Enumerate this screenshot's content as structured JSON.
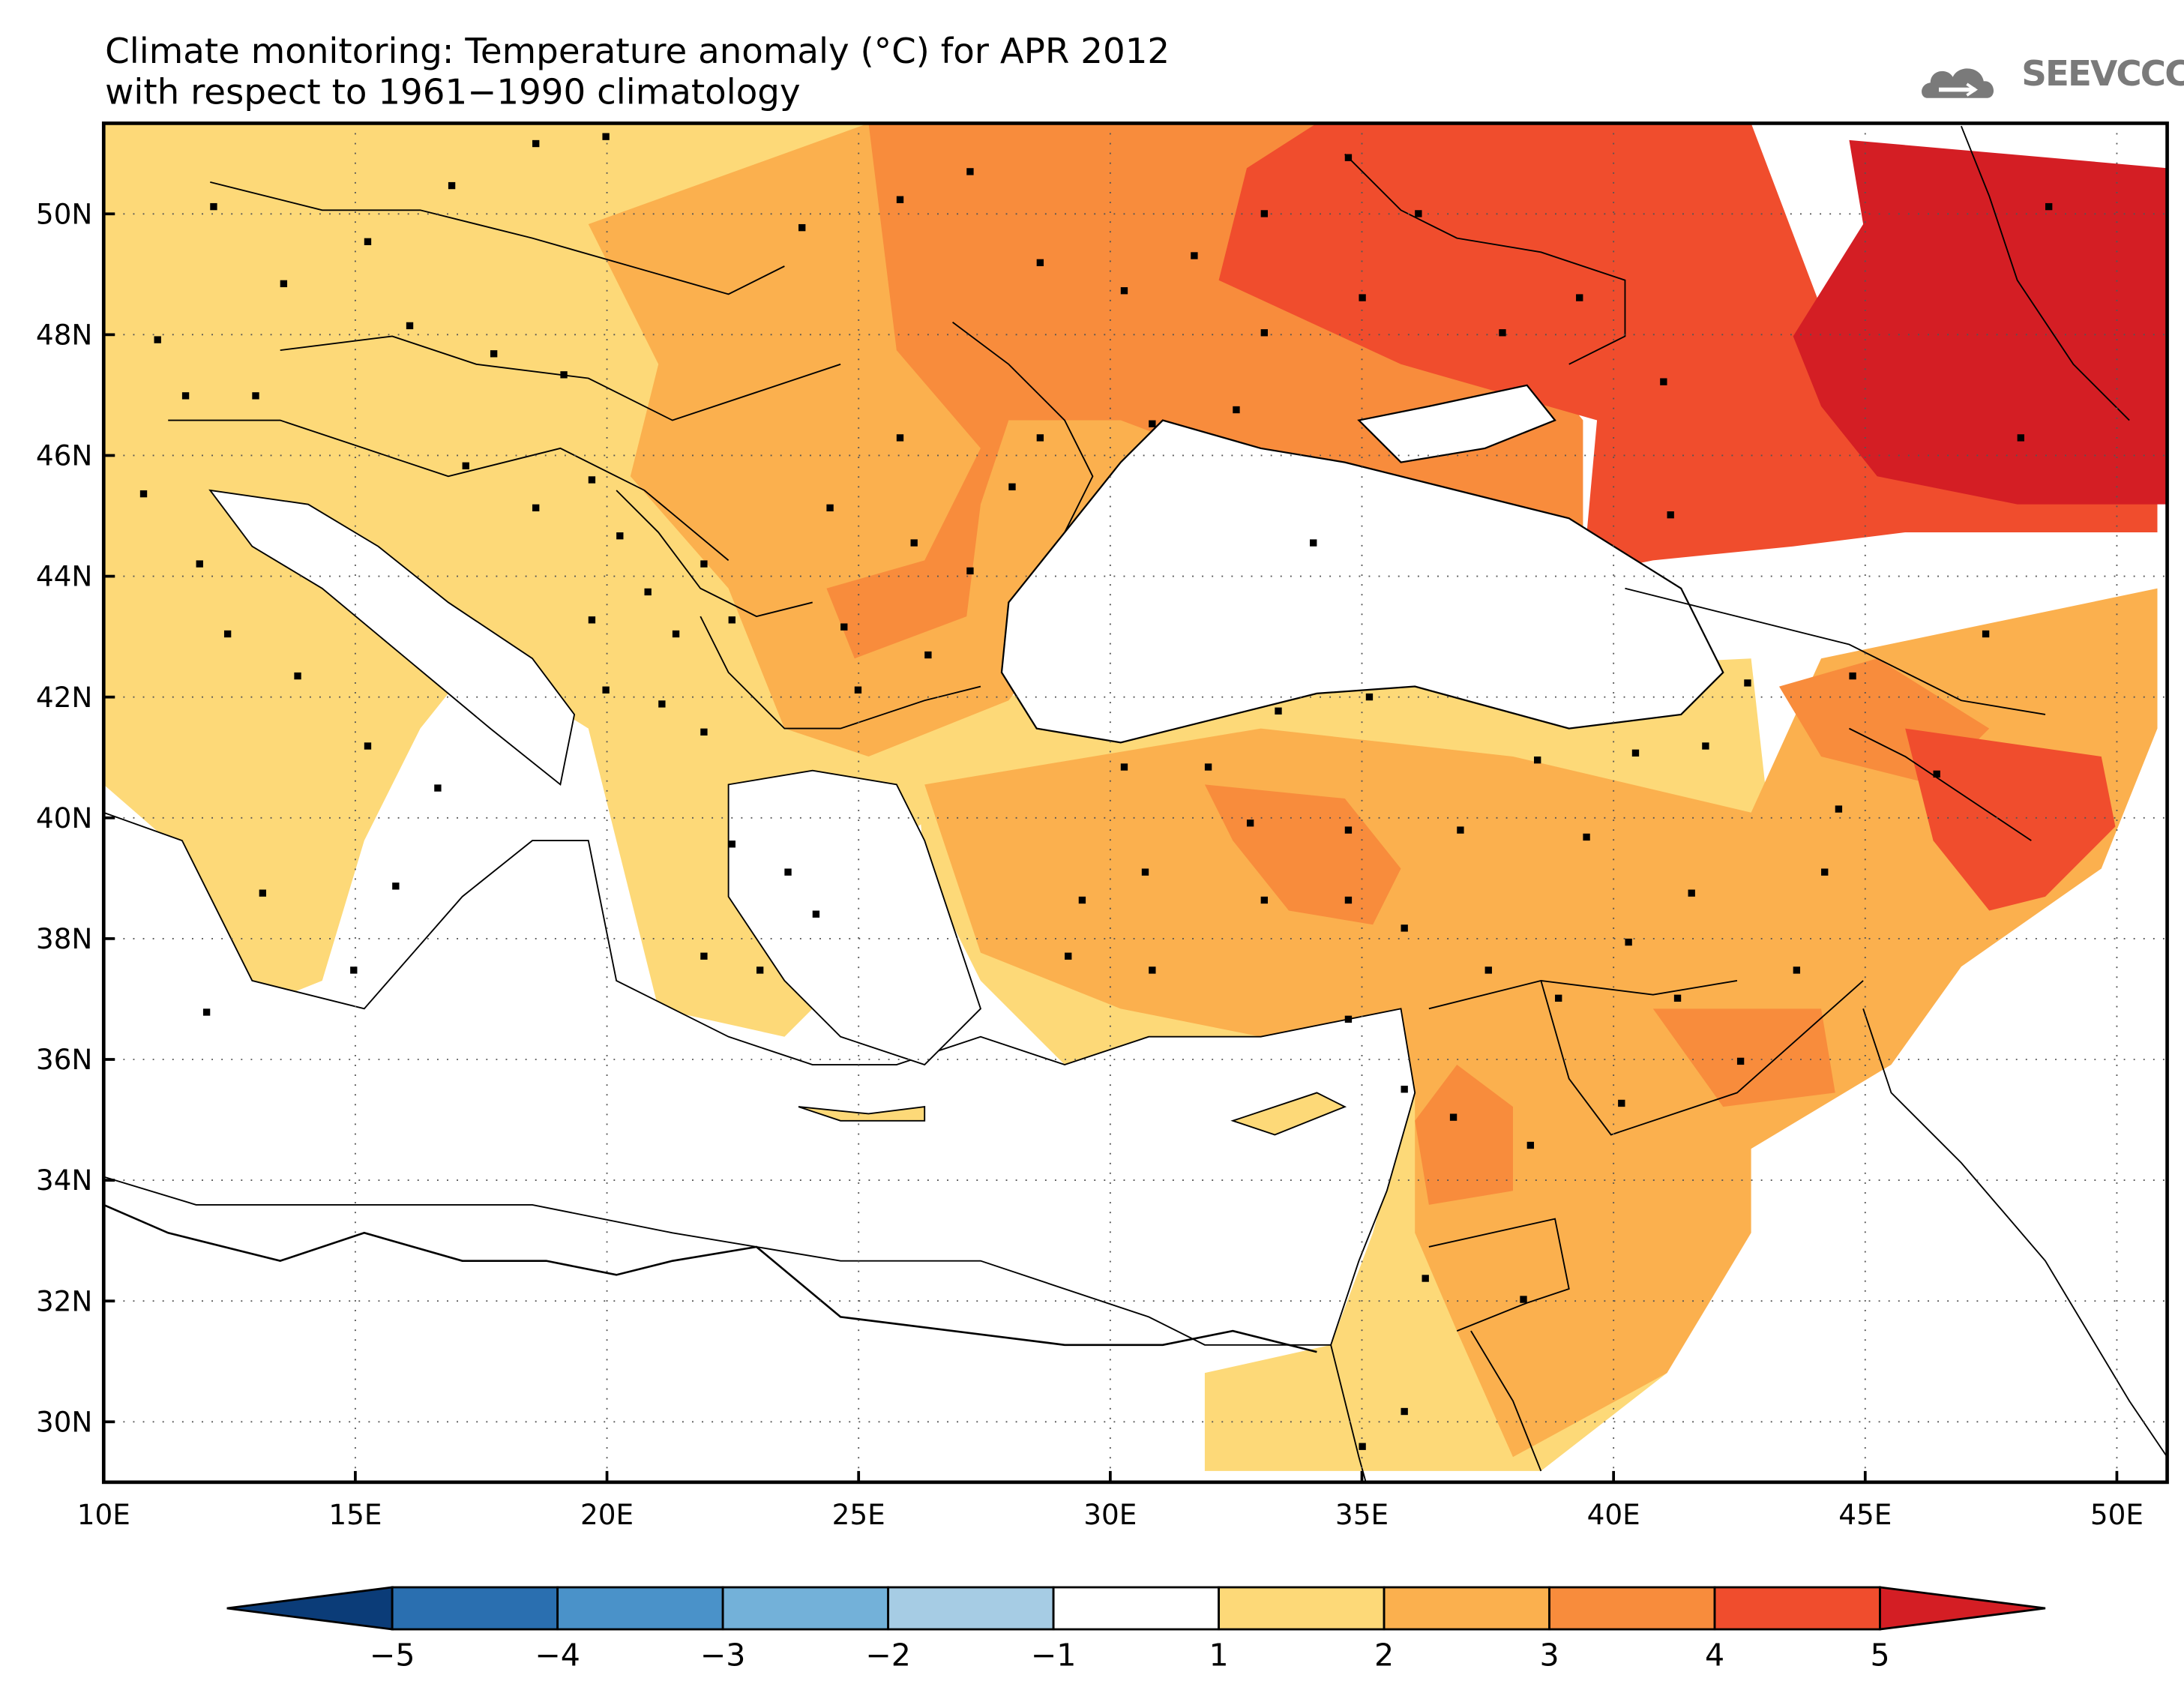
{
  "title": {
    "line1": "Climate monitoring: Temperature anomaly (°C) for APR 2012",
    "line2": "with respect to 1961−1990 climatology"
  },
  "logo": {
    "text": "SEEVCCC",
    "icon": "cloud-icon"
  },
  "map": {
    "lon_ticks": [
      "10E",
      "15E",
      "20E",
      "25E",
      "30E",
      "35E",
      "40E",
      "45E",
      "50E"
    ],
    "lat_ticks": [
      "30N",
      "32N",
      "34N",
      "36N",
      "38N",
      "40N",
      "42N",
      "44N",
      "46N",
      "48N",
      "50N"
    ],
    "lon_values": [
      10,
      15,
      20,
      25,
      30,
      35,
      40,
      45,
      50
    ],
    "lat_values": [
      30,
      32,
      34,
      36,
      38,
      40,
      42,
      44,
      46,
      48,
      50
    ],
    "lon_range": [
      10,
      51
    ],
    "lat_range": [
      29,
      51.5
    ],
    "gridlines": true
  },
  "colorbar": {
    "labels": [
      "−5",
      "−4",
      "−3",
      "−2",
      "−1",
      "1",
      "2",
      "3",
      "4",
      "5"
    ],
    "colors": [
      "#0b3c78",
      "#2a6fb0",
      "#4a92c9",
      "#73b1d9",
      "#a6cce4",
      "#ffffff",
      "#fdd978",
      "#fbb04e",
      "#f88c3c",
      "#f04d2d",
      "#d41e24"
    ],
    "extend": "both"
  }
}
